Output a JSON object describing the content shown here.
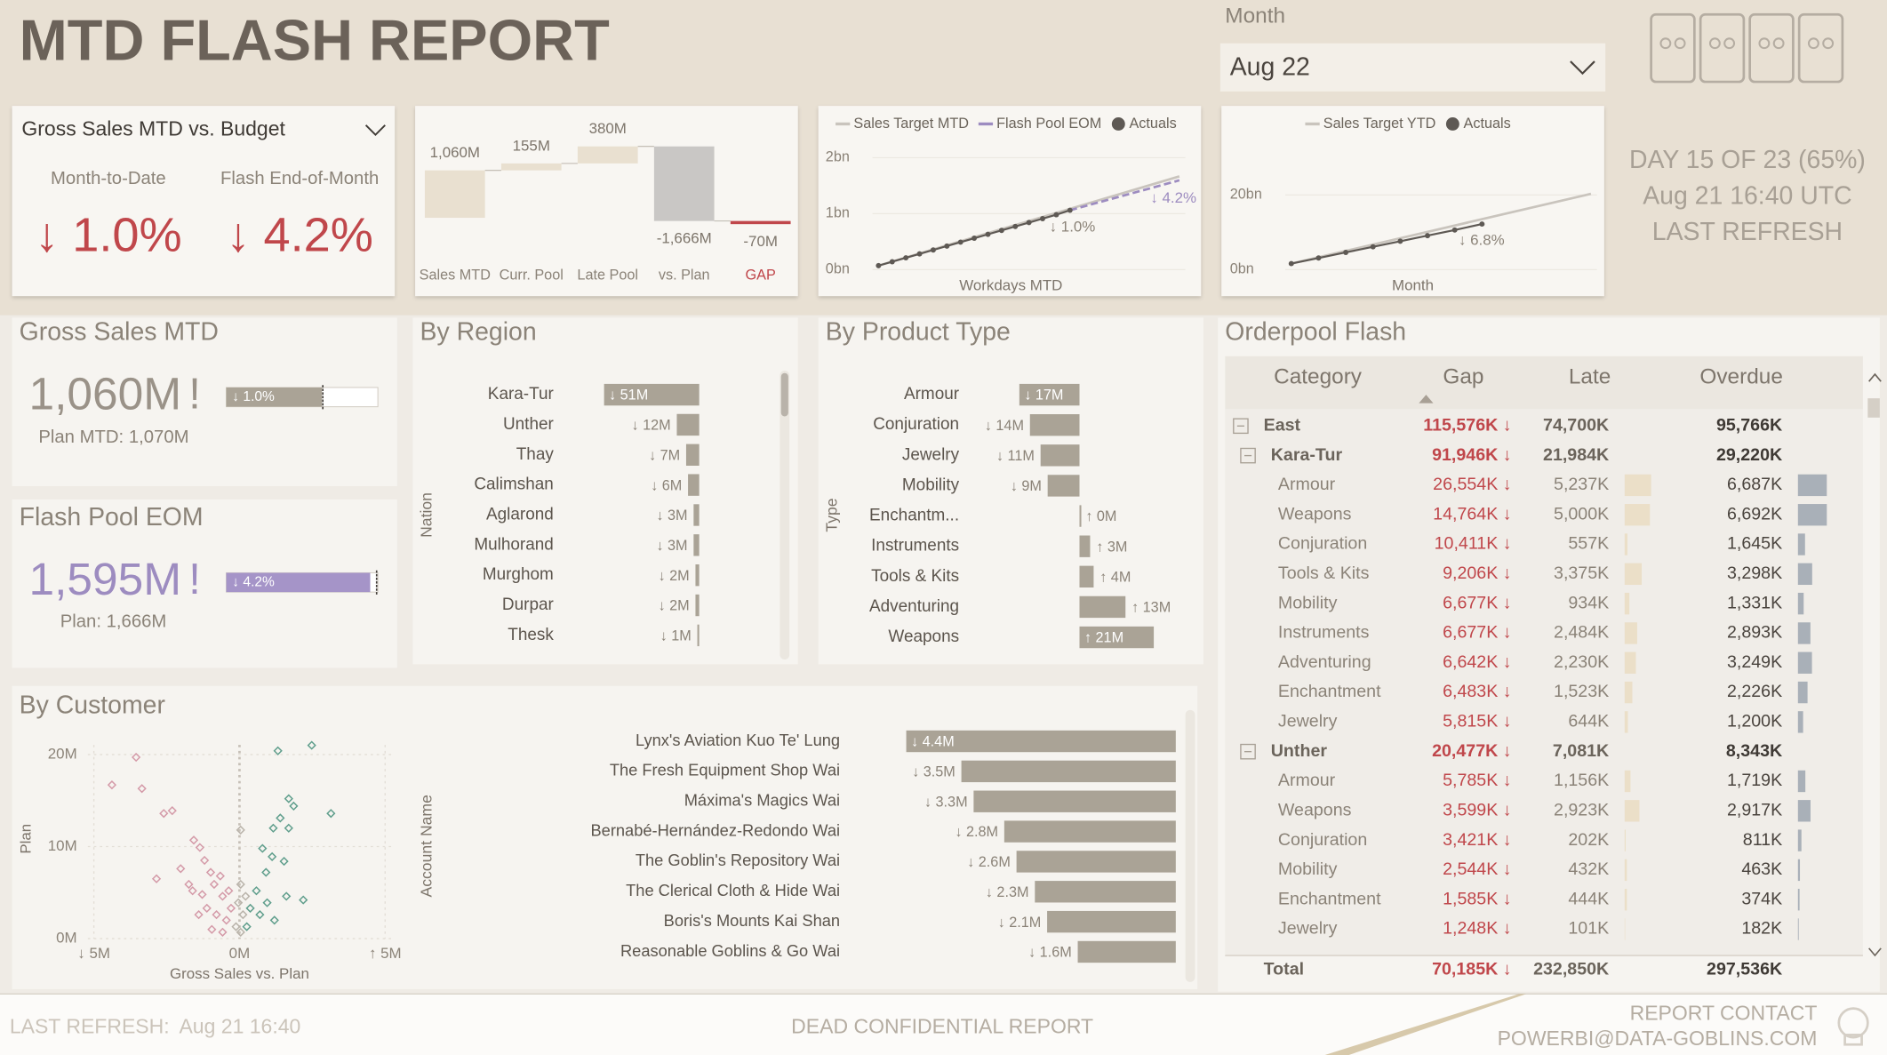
{
  "header": {
    "title": "MTD FLASH REPORT",
    "month_label": "Month",
    "month_value": "Aug 22"
  },
  "status": [
    "DAY 15 OF 23 (65%)",
    "Aug 21 16:40 UTC",
    "LAST REFRESH"
  ],
  "kpi": {
    "selector": "Gross Sales MTD vs. Budget",
    "items": [
      {
        "label": "Month-to-Date",
        "value": "↓ 1.0%"
      },
      {
        "label": "Flash End-of-Month",
        "value": "↓ 4.2%"
      }
    ]
  },
  "waterfall": {
    "type": "waterfall",
    "categories": [
      "Sales MTD",
      "Curr. Pool",
      "Late Pool",
      "vs. Plan",
      "GAP"
    ],
    "values": [
      1060,
      155,
      380,
      -1666,
      -70
    ],
    "value_labels": [
      "1,060M",
      "155M",
      "380M",
      "-1,666M",
      "-70M"
    ],
    "colors": [
      "#e9e0d0",
      "#e9e0d0",
      "#e9e0d0",
      "#c9c7c5",
      "#c0474b"
    ]
  },
  "mtd_line": {
    "type": "line",
    "x_label": "Workdays MTD",
    "xlim": [
      1,
      23
    ],
    "ylim": [
      0,
      2
    ],
    "yticks": [
      {
        "value": 0,
        "label": "0bn"
      },
      {
        "value": 1,
        "label": "1bn"
      },
      {
        "value": 2,
        "label": "2bn"
      }
    ],
    "series": [
      {
        "name": "Sales Target MTD",
        "color": "#c9c4bd",
        "x": [
          1,
          23
        ],
        "values": [
          0.07,
          1.666
        ]
      },
      {
        "name": "Flash Pool EOM",
        "color": "#9d8cc0",
        "dash": true,
        "x": [
          15,
          23
        ],
        "values": [
          1.06,
          1.595
        ]
      },
      {
        "name": "Actuals",
        "color": "#5e5954",
        "markers": true,
        "x": [
          1,
          2,
          3,
          4,
          5,
          6,
          7,
          8,
          9,
          10,
          11,
          12,
          13,
          14,
          15
        ],
        "values": [
          0.07,
          0.14,
          0.21,
          0.28,
          0.35,
          0.42,
          0.49,
          0.56,
          0.63,
          0.7,
          0.77,
          0.84,
          0.91,
          0.98,
          1.06
        ]
      }
    ],
    "annotations": [
      "↓ 1.0%",
      "↓ 4.2%"
    ]
  },
  "ytd_line": {
    "type": "line",
    "x_label": "Month",
    "xlim": [
      1,
      12
    ],
    "ylim": [
      0,
      20
    ],
    "yticks": [
      {
        "value": 0,
        "label": "0bn"
      },
      {
        "value": 20,
        "label": "20bn"
      }
    ],
    "series": [
      {
        "name": "Sales Target YTD",
        "color": "#c9c4bd",
        "x": [
          1,
          12
        ],
        "values": [
          1.6,
          20.3
        ]
      },
      {
        "name": "Actuals",
        "color": "#5e5954",
        "markers": true,
        "x": [
          1,
          2,
          3,
          4,
          5,
          6,
          7,
          8
        ],
        "values": [
          1.6,
          3.1,
          4.6,
          6.1,
          7.6,
          9.1,
          10.6,
          12.2
        ]
      }
    ],
    "annotations": [
      "↓ 6.8%"
    ]
  },
  "gross_sales": {
    "title": "Gross Sales MTD",
    "value": 1060,
    "value_label": "1,060M",
    "alert": "!",
    "bar_label": "↓ 1.0%",
    "plan": 1070,
    "plan_label": "Plan MTD: 1,070M",
    "xlim": [
      0,
      1680
    ],
    "color": "#aaa396"
  },
  "flash_pool": {
    "title": "Flash Pool EOM",
    "value": 1595,
    "value_label": "1,595M",
    "alert": "!",
    "bar_label": "↓ 4.2%",
    "plan": 1666,
    "plan_label": "Plan: 1,666M",
    "xlim": [
      0,
      1680
    ],
    "color": "#a594c8"
  },
  "region": {
    "type": "bar",
    "title": "By Region",
    "axis_title": "Nation",
    "categories": [
      "Kara-Tur",
      "Unther",
      "Thay",
      "Calimshan",
      "Aglarond",
      "Mulhorand",
      "Murghom",
      "Durpar",
      "Thesk"
    ],
    "values": [
      -51,
      -12,
      -7,
      -6,
      -3,
      -3,
      -2,
      -2,
      -1
    ],
    "value_labels": [
      "↓ 51M",
      "↓ 12M",
      "↓ 7M",
      "↓ 6M",
      "↓ 3M",
      "↓ 3M",
      "↓ 2M",
      "↓ 2M",
      "↓ 1M"
    ],
    "color": "#aaa396"
  },
  "product": {
    "type": "bar",
    "title": "By Product Type",
    "axis_title": "Type",
    "categories": [
      "Armour",
      "Conjuration",
      "Jewelry",
      "Mobility",
      "Enchantm...",
      "Instruments",
      "Tools & Kits",
      "Adventuring",
      "Weapons"
    ],
    "values": [
      -17,
      -14,
      -11,
      -9,
      0,
      3,
      4,
      13,
      21
    ],
    "value_labels": [
      "↓ 17M",
      "↓ 14M",
      "↓ 11M",
      "↓ 9M",
      "↑ 0M",
      "↑ 3M",
      "↑ 4M",
      "↑ 13M",
      "↑ 21M"
    ],
    "color": "#aaa396"
  },
  "customer": {
    "title": "By Customer",
    "scatter": {
      "type": "scatter",
      "x_label": "Gross Sales vs. Plan",
      "y_label": "Plan",
      "xlim": [
        -5,
        5
      ],
      "ylim": [
        0,
        20
      ],
      "xticks": [
        {
          "value": -5,
          "label": "↓ 5M"
        },
        {
          "value": 0,
          "label": "0M"
        },
        {
          "value": 5,
          "label": "↑ 5M"
        }
      ],
      "yticks": [
        {
          "value": 0,
          "label": "0M"
        },
        {
          "value": 10,
          "label": "10M"
        },
        {
          "value": 20,
          "label": "20M"
        }
      ],
      "series": [
        {
          "color": "#d49aa8",
          "x": [
            -3.55,
            -4.38,
            -3.35,
            -2.6,
            -2.31,
            -2.85,
            -1.57,
            -1.36,
            -2.02,
            -1.61,
            -1.2,
            -0.99,
            -0.87,
            -0.58,
            -0.79,
            -0.45,
            -1.12,
            -1.4,
            -0.66,
            -0.37,
            -1.74,
            -0.95,
            -0.58,
            -0.29,
            -1.28
          ],
          "values": [
            19.7,
            16.7,
            16.3,
            13.6,
            13.9,
            6.5,
            10.7,
            9.9,
            7.6,
            5.2,
            8.5,
            7.2,
            5.9,
            4.6,
            2.6,
            2.0,
            3.3,
            2.6,
            6.8,
            5.2,
            5.9,
            1.0,
            0.7,
            3.3,
            4.8
          ]
        },
        {
          "color": "#5f9e8c",
          "x": [
            1.32,
            2.48,
            3.14,
            1.69,
            1.86,
            1.4,
            1.16,
            1.69,
            0.79,
            1.12,
            1.53,
            0.91,
            2.19,
            1.61,
            1.2,
            0.58,
            0.37,
            0.7,
            0.25,
            0.95
          ],
          "values": [
            20.4,
            21.0,
            13.6,
            15.2,
            14.4,
            13.1,
            12.0,
            12.0,
            9.8,
            8.9,
            8.4,
            7.2,
            4.2,
            4.6,
            2.0,
            5.2,
            3.3,
            2.6,
            1.3,
            3.9
          ]
        },
        {
          "color": "#b9b3aa",
          "x": [
            0.04,
            -0.04,
            0.12,
            -0.12,
            0.04,
            0.04,
            0.21
          ],
          "values": [
            5.9,
            3.9,
            2.6,
            1.3,
            0.7,
            11.8,
            4.6
          ]
        }
      ]
    },
    "bars": {
      "type": "bar",
      "axis_title": "Account Name",
      "categories": [
        "Lynx's Aviation Kuo Te' Lung",
        "The Fresh Equipment Shop Wai",
        "Máxima's Magics Wai",
        "Bernabé-Hernández-Redondo Wai",
        "The Goblin's Repository Wai",
        "The Clerical Cloth & Hide Wai",
        "Boris's Mounts Kai Shan",
        "Reasonable Goblins & Go Wai"
      ],
      "values": [
        -4.4,
        -3.5,
        -3.3,
        -2.8,
        -2.6,
        -2.3,
        -2.1,
        -1.6
      ],
      "value_labels": [
        "↓ 4.4M",
        "↓ 3.5M",
        "↓ 3.3M",
        "↓ 2.8M",
        "↓ 2.6M",
        "↓ 2.3M",
        "↓ 2.1M",
        "↓ 1.6M"
      ],
      "color": "#aaa396"
    }
  },
  "orderpool": {
    "title": "Orderpool Flash",
    "headers": [
      "Category",
      "Gap",
      "Late",
      "Overdue"
    ],
    "rows": [
      {
        "category": "East",
        "gap": "115,576K ↓",
        "late": "74,700K",
        "overdue": "95,766K",
        "children": [
          {
            "category": "Kara-Tur",
            "gap": "91,946K ↓",
            "late": "21,984K",
            "overdue": "29,220K",
            "children": [
              {
                "category": "Armour",
                "gap": "26,554K ↓",
                "late": 5237,
                "late_label": "5,237K",
                "overdue": 6687,
                "overdue_label": "6,687K"
              },
              {
                "category": "Weapons",
                "gap": "14,764K ↓",
                "late": 5000,
                "late_label": "5,000K",
                "overdue": 6692,
                "overdue_label": "6,692K"
              },
              {
                "category": "Conjuration",
                "gap": "10,411K ↓",
                "late": 557,
                "late_label": "557K",
                "overdue": 1645,
                "overdue_label": "1,645K"
              },
              {
                "category": "Tools & Kits",
                "gap": "9,206K ↓",
                "late": 3375,
                "late_label": "3,375K",
                "overdue": 3298,
                "overdue_label": "3,298K"
              },
              {
                "category": "Mobility",
                "gap": "6,677K ↓",
                "late": 934,
                "late_label": "934K",
                "overdue": 1331,
                "overdue_label": "1,331K"
              },
              {
                "category": "Instruments",
                "gap": "6,677K ↓",
                "late": 2484,
                "late_label": "2,484K",
                "overdue": 2893,
                "overdue_label": "2,893K"
              },
              {
                "category": "Adventuring",
                "gap": "6,642K ↓",
                "late": 2230,
                "late_label": "2,230K",
                "overdue": 3249,
                "overdue_label": "3,249K"
              },
              {
                "category": "Enchantment",
                "gap": "6,483K ↓",
                "late": 1523,
                "late_label": "1,523K",
                "overdue": 2226,
                "overdue_label": "2,226K"
              },
              {
                "category": "Jewelry",
                "gap": "5,815K ↓",
                "late": 644,
                "late_label": "644K",
                "overdue": 1200,
                "overdue_label": "1,200K"
              }
            ]
          },
          {
            "category": "Unther",
            "gap": "20,477K ↓",
            "late": "7,081K",
            "overdue": "8,343K",
            "children": [
              {
                "category": "Armour",
                "gap": "5,785K ↓",
                "late": 1156,
                "late_label": "1,156K",
                "overdue": 1719,
                "overdue_label": "1,719K"
              },
              {
                "category": "Weapons",
                "gap": "3,599K ↓",
                "late": 2923,
                "late_label": "2,923K",
                "overdue": 2917,
                "overdue_label": "2,917K"
              },
              {
                "category": "Conjuration",
                "gap": "3,421K ↓",
                "late": 202,
                "late_label": "202K",
                "overdue": 811,
                "overdue_label": "811K"
              },
              {
                "category": "Mobility",
                "gap": "2,544K ↓",
                "late": 432,
                "late_label": "432K",
                "overdue": 463,
                "overdue_label": "463K"
              },
              {
                "category": "Enchantment",
                "gap": "1,585K ↓",
                "late": 444,
                "late_label": "444K",
                "overdue": 374,
                "overdue_label": "374K"
              },
              {
                "category": "Jewelry",
                "gap": "1,248K ↓",
                "late": 101,
                "late_label": "101K",
                "overdue": 182,
                "overdue_label": "182K"
              }
            ]
          }
        ]
      }
    ],
    "total": {
      "category": "Total",
      "gap": "70,185K ↓",
      "late": "232,850K",
      "overdue": "297,536K"
    }
  },
  "footer": {
    "refresh_label": "LAST REFRESH:",
    "refresh_value": "Aug 21 16:40",
    "confidential": "DEAD CONFIDENTIAL REPORT",
    "contact_label": "REPORT CONTACT",
    "contact_email": "POWERBI@DATA-GOBLINS.COM"
  }
}
